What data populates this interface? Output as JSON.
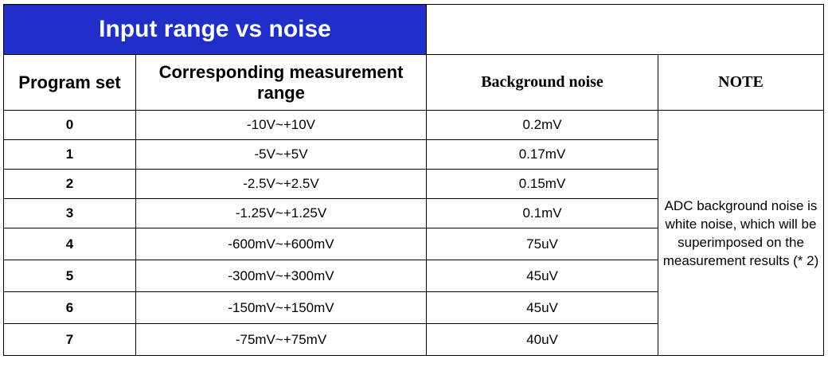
{
  "title": "Input range vs noise",
  "headers": {
    "program_set": "Program set",
    "measurement_range": "Corresponding measurement range",
    "background_noise": "Background noise",
    "note": "NOTE"
  },
  "rows": [
    {
      "program": "0",
      "range": "-10V~+10V",
      "noise": "0.2mV"
    },
    {
      "program": "1",
      "range": "-5V~+5V",
      "noise": "0.17mV"
    },
    {
      "program": "2",
      "range": "-2.5V~+2.5V",
      "noise": "0.15mV"
    },
    {
      "program": "3",
      "range": "-1.25V~+1.25V",
      "noise": "0.1mV"
    },
    {
      "program": "4",
      "range": "-600mV~+600mV",
      "noise": "75uV"
    },
    {
      "program": "5",
      "range": "-300mV~+300mV",
      "noise": "45uV"
    },
    {
      "program": "6",
      "range": "-150mV~+150mV",
      "noise": "45uV"
    },
    {
      "program": "7",
      "range": "-75mV~+75mV",
      "noise": "40uV"
    }
  ],
  "note_text": "ADC background noise is white noise, which will be superimposed on the measurement results (* 2)",
  "colors": {
    "title_background": "#1f2fc8",
    "title_text": "#ffffff"
  }
}
